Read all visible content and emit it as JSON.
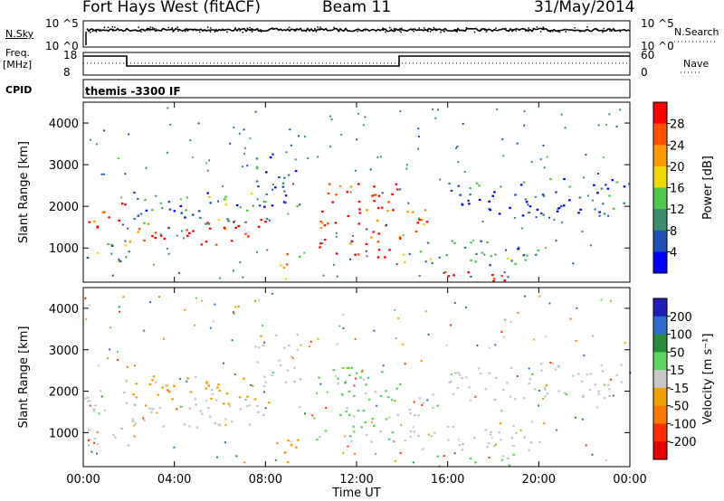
{
  "header": {
    "station": "Fort Hays West (fitACF)",
    "beam": "Beam 11",
    "date": "31/May/2014"
  },
  "strip_labels": {
    "nsky": "N.Sky",
    "nsearch": "N.Search",
    "freq": "Freq.",
    "freq_unit": "[MHz]",
    "nave": "Nave",
    "cpid": "CPID",
    "cpid_value": "themis -3300 IF"
  },
  "strip_ticks": {
    "noise_left": [
      "10^5",
      "10^0"
    ],
    "noise_right": [
      "10^5",
      "10^0"
    ],
    "freq_left": [
      "18",
      "8"
    ],
    "nave_right": [
      "60",
      "0"
    ]
  },
  "colors": {
    "power": [
      "#0000ff",
      "#1f4fb4",
      "#3c8c6e",
      "#50c850",
      "#f0d800",
      "#ff9900",
      "#ff5000",
      "#ff0000"
    ],
    "velocity": [
      "#1e1eb4",
      "#2f6bcf",
      "#2a8a3c",
      "#5ed55e",
      "#c8c8c8",
      "#f0a000",
      "#ff7800",
      "#ff3000",
      "#e80000"
    ]
  },
  "chart_data": [
    {
      "type": "heatmap",
      "title": "",
      "xlabel": "Time UT",
      "ylabel": "Slant Range [km]",
      "x_ticks": [
        "00:00",
        "04:00",
        "08:00",
        "12:00",
        "16:00",
        "20:00",
        "00:00"
      ],
      "y_ticks": [
        1000,
        2000,
        3000,
        4000
      ],
      "xlim_hours": [
        0,
        24
      ],
      "ylim_km": [
        180,
        4500
      ],
      "colorbar": {
        "label": "Power [dB]",
        "ticks": [
          4,
          8,
          12,
          16,
          20,
          24,
          28
        ],
        "range": [
          0,
          30
        ]
      },
      "echo_bands": [
        {
          "t0": 0.0,
          "t1": 2.0,
          "r0": 1500,
          "r1": 2100,
          "value": 27
        },
        {
          "t0": 0.0,
          "t1": 2.0,
          "r0": 700,
          "r1": 1200,
          "value": 12
        },
        {
          "t0": 2.0,
          "t1": 8.2,
          "r0": 1100,
          "r1": 1700,
          "value": 27
        },
        {
          "t0": 2.0,
          "t1": 8.2,
          "r0": 1600,
          "r1": 2400,
          "value": 10
        },
        {
          "t0": 7.5,
          "t1": 9.5,
          "r0": 2000,
          "r1": 3400,
          "value": 6
        },
        {
          "t0": 8.5,
          "t1": 9.5,
          "r0": 200,
          "r1": 900,
          "value": 20
        },
        {
          "t0": 10.2,
          "t1": 13.9,
          "r0": 800,
          "r1": 2600,
          "value": 27
        },
        {
          "t0": 14.0,
          "t1": 15.8,
          "r0": 1400,
          "r1": 2000,
          "value": 24
        },
        {
          "t0": 14.0,
          "t1": 20.0,
          "r0": 600,
          "r1": 1200,
          "value": 10
        },
        {
          "t0": 15.5,
          "t1": 19.0,
          "r0": 200,
          "r1": 500,
          "value": 27
        },
        {
          "t0": 16.0,
          "t1": 20.5,
          "r0": 1800,
          "r1": 2600,
          "value": 5
        },
        {
          "t0": 20.0,
          "t1": 24.0,
          "r0": 1800,
          "r1": 2700,
          "value": 6
        }
      ]
    },
    {
      "type": "heatmap",
      "title": "",
      "xlabel": "Time UT",
      "ylabel": "Slant Range [km]",
      "x_ticks": [
        "00:00",
        "04:00",
        "08:00",
        "12:00",
        "16:00",
        "20:00",
        "00:00"
      ],
      "y_ticks": [
        1000,
        2000,
        3000,
        4000
      ],
      "xlim_hours": [
        0,
        24
      ],
      "ylim_km": [
        180,
        4500
      ],
      "colorbar": {
        "label": "Velocity [m s^-1]",
        "ticks": [
          200,
          100,
          50,
          15,
          -15,
          -50,
          -100,
          -200
        ],
        "range": [
          -250,
          250
        ]
      },
      "echo_bands": [
        {
          "t0": 0.0,
          "t1": 2.0,
          "r0": 1500,
          "r1": 2100,
          "value": 0
        },
        {
          "t0": 0.0,
          "t1": 2.0,
          "r0": 700,
          "r1": 1200,
          "value": 0
        },
        {
          "t0": 2.0,
          "t1": 8.2,
          "r0": 1100,
          "r1": 1700,
          "value": 0
        },
        {
          "t0": 2.0,
          "t1": 8.2,
          "r0": 1600,
          "r1": 2400,
          "value": -40
        },
        {
          "t0": 7.5,
          "t1": 9.5,
          "r0": 2000,
          "r1": 3400,
          "value": 0
        },
        {
          "t0": 8.5,
          "t1": 9.5,
          "r0": 200,
          "r1": 900,
          "value": -60
        },
        {
          "t0": 10.2,
          "t1": 13.9,
          "r0": 800,
          "r1": 2600,
          "value": 40
        },
        {
          "t0": 14.0,
          "t1": 15.8,
          "r0": 1400,
          "r1": 2000,
          "value": 0
        },
        {
          "t0": 14.0,
          "t1": 20.0,
          "r0": 600,
          "r1": 1200,
          "value": 0
        },
        {
          "t0": 15.5,
          "t1": 19.0,
          "r0": 200,
          "r1": 500,
          "value": 30
        },
        {
          "t0": 16.0,
          "t1": 20.5,
          "r0": 1800,
          "r1": 2600,
          "value": 0
        },
        {
          "t0": 20.0,
          "t1": 24.0,
          "r0": 1800,
          "r1": 2700,
          "value": 0
        }
      ]
    }
  ]
}
